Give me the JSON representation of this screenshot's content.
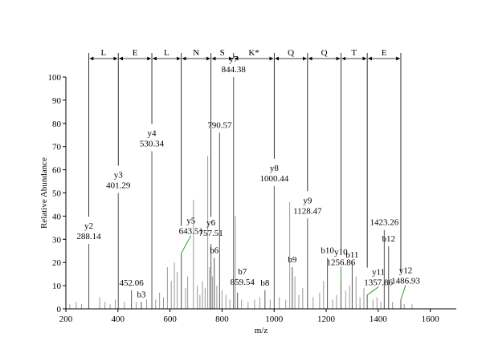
{
  "chart_data": {
    "type": "bar",
    "title": "",
    "xlabel": "m/z",
    "ylabel": "Relative Abundance",
    "xlim": [
      200,
      1700
    ],
    "ylim": [
      0,
      100
    ],
    "x_ticks": [
      200,
      400,
      600,
      800,
      1000,
      1200,
      1400,
      1600
    ],
    "y_ticks": [
      0,
      10,
      20,
      30,
      40,
      50,
      60,
      70,
      80,
      90,
      100
    ],
    "grid": false,
    "legend": "none",
    "colors": {
      "peaks": "#999999",
      "annotation_leader": "#2aa02a",
      "axes": "#000000"
    },
    "sequence": {
      "residues": [
        "L",
        "E",
        "L",
        "N",
        "S",
        "K*",
        "Q",
        "Q",
        "T",
        "E"
      ],
      "boundaries_mz": [
        288.14,
        401.29,
        530.34,
        643.51,
        757.51,
        844.38,
        1000.44,
        1128.47,
        1256.86,
        1357.86,
        1486.93
      ]
    },
    "annotated_peaks": [
      {
        "mz": 288.14,
        "intensity": 28,
        "label": "y2",
        "mz_label": "288.14"
      },
      {
        "mz": 401.29,
        "intensity": 50,
        "label": "y3",
        "mz_label": "401.29"
      },
      {
        "mz": 452.06,
        "intensity": 8,
        "label": "",
        "mz_label": "452.06"
      },
      {
        "mz": 490,
        "intensity": 3,
        "label": "b3",
        "mz_label": ""
      },
      {
        "mz": 530.34,
        "intensity": 68,
        "label": "y4",
        "mz_label": "530.34"
      },
      {
        "mz": 643.51,
        "intensity": 24,
        "label": "y5",
        "mz_label": "643.51"
      },
      {
        "mz": 757.51,
        "intensity": 28,
        "label": "y6",
        "mz_label": "757.51"
      },
      {
        "mz": 770,
        "intensity": 22,
        "label": "b6",
        "mz_label": ""
      },
      {
        "mz": 790.57,
        "intensity": 76,
        "label": "",
        "mz_label": "790.57"
      },
      {
        "mz": 844.38,
        "intensity": 100,
        "label": "y7",
        "mz_label": "844.38"
      },
      {
        "mz": 859.54,
        "intensity": 7,
        "label": "b7",
        "mz_label": "859.54"
      },
      {
        "mz": 965,
        "intensity": 8,
        "label": "b8",
        "mz_label": ""
      },
      {
        "mz": 1000.44,
        "intensity": 53,
        "label": "y8",
        "mz_label": "1000.44"
      },
      {
        "mz": 1070,
        "intensity": 18,
        "label": "b9",
        "mz_label": ""
      },
      {
        "mz": 1128.47,
        "intensity": 39,
        "label": "y9",
        "mz_label": "1128.47"
      },
      {
        "mz": 1205,
        "intensity": 22,
        "label": "b10",
        "mz_label": ""
      },
      {
        "mz": 1256.86,
        "intensity": 12,
        "label": "y10",
        "mz_label": "1256.86"
      },
      {
        "mz": 1300,
        "intensity": 20,
        "label": "b11",
        "mz_label": ""
      },
      {
        "mz": 1357.86,
        "intensity": 6,
        "label": "y11",
        "mz_label": "1357.86"
      },
      {
        "mz": 1423.26,
        "intensity": 34,
        "label": "",
        "mz_label": "1423.26"
      },
      {
        "mz": 1440,
        "intensity": 27,
        "label": "b12",
        "mz_label": ""
      },
      {
        "mz": 1486.93,
        "intensity": 4,
        "label": "y12",
        "mz_label": "1486.93"
      }
    ],
    "other_peaks": [
      {
        "mz": 215,
        "intensity": 2
      },
      {
        "mz": 240,
        "intensity": 3
      },
      {
        "mz": 260,
        "intensity": 2
      },
      {
        "mz": 330,
        "intensity": 5
      },
      {
        "mz": 350,
        "intensity": 3
      },
      {
        "mz": 370,
        "intensity": 2
      },
      {
        "mz": 390,
        "intensity": 4
      },
      {
        "mz": 425,
        "intensity": 3
      },
      {
        "mz": 470,
        "intensity": 3
      },
      {
        "mz": 510,
        "intensity": 4
      },
      {
        "mz": 545,
        "intensity": 4
      },
      {
        "mz": 560,
        "intensity": 7
      },
      {
        "mz": 575,
        "intensity": 5
      },
      {
        "mz": 590,
        "intensity": 18
      },
      {
        "mz": 605,
        "intensity": 12
      },
      {
        "mz": 617,
        "intensity": 20
      },
      {
        "mz": 628,
        "intensity": 16
      },
      {
        "mz": 660,
        "intensity": 9
      },
      {
        "mz": 668,
        "intensity": 14
      },
      {
        "mz": 690,
        "intensity": 47
      },
      {
        "mz": 705,
        "intensity": 10
      },
      {
        "mz": 715,
        "intensity": 6
      },
      {
        "mz": 725,
        "intensity": 12
      },
      {
        "mz": 735,
        "intensity": 9
      },
      {
        "mz": 745,
        "intensity": 66
      },
      {
        "mz": 752,
        "intensity": 18
      },
      {
        "mz": 763,
        "intensity": 14
      },
      {
        "mz": 780,
        "intensity": 10
      },
      {
        "mz": 800,
        "intensity": 8
      },
      {
        "mz": 815,
        "intensity": 6
      },
      {
        "mz": 830,
        "intensity": 4
      },
      {
        "mz": 851,
        "intensity": 40
      },
      {
        "mz": 875,
        "intensity": 4
      },
      {
        "mz": 900,
        "intensity": 3
      },
      {
        "mz": 925,
        "intensity": 4
      },
      {
        "mz": 945,
        "intensity": 5
      },
      {
        "mz": 985,
        "intensity": 4
      },
      {
        "mz": 1020,
        "intensity": 5
      },
      {
        "mz": 1045,
        "intensity": 4
      },
      {
        "mz": 1060,
        "intensity": 46
      },
      {
        "mz": 1080,
        "intensity": 14
      },
      {
        "mz": 1095,
        "intensity": 6
      },
      {
        "mz": 1110,
        "intensity": 9
      },
      {
        "mz": 1150,
        "intensity": 5
      },
      {
        "mz": 1175,
        "intensity": 7
      },
      {
        "mz": 1190,
        "intensity": 12
      },
      {
        "mz": 1225,
        "intensity": 4
      },
      {
        "mz": 1240,
        "intensity": 6
      },
      {
        "mz": 1275,
        "intensity": 8
      },
      {
        "mz": 1290,
        "intensity": 10
      },
      {
        "mz": 1315,
        "intensity": 14
      },
      {
        "mz": 1330,
        "intensity": 5
      },
      {
        "mz": 1345,
        "intensity": 9
      },
      {
        "mz": 1380,
        "intensity": 4
      },
      {
        "mz": 1395,
        "intensity": 5
      },
      {
        "mz": 1410,
        "intensity": 3
      },
      {
        "mz": 1455,
        "intensity": 3
      },
      {
        "mz": 1500,
        "intensity": 2
      },
      {
        "mz": 1530,
        "intensity": 2
      }
    ]
  }
}
